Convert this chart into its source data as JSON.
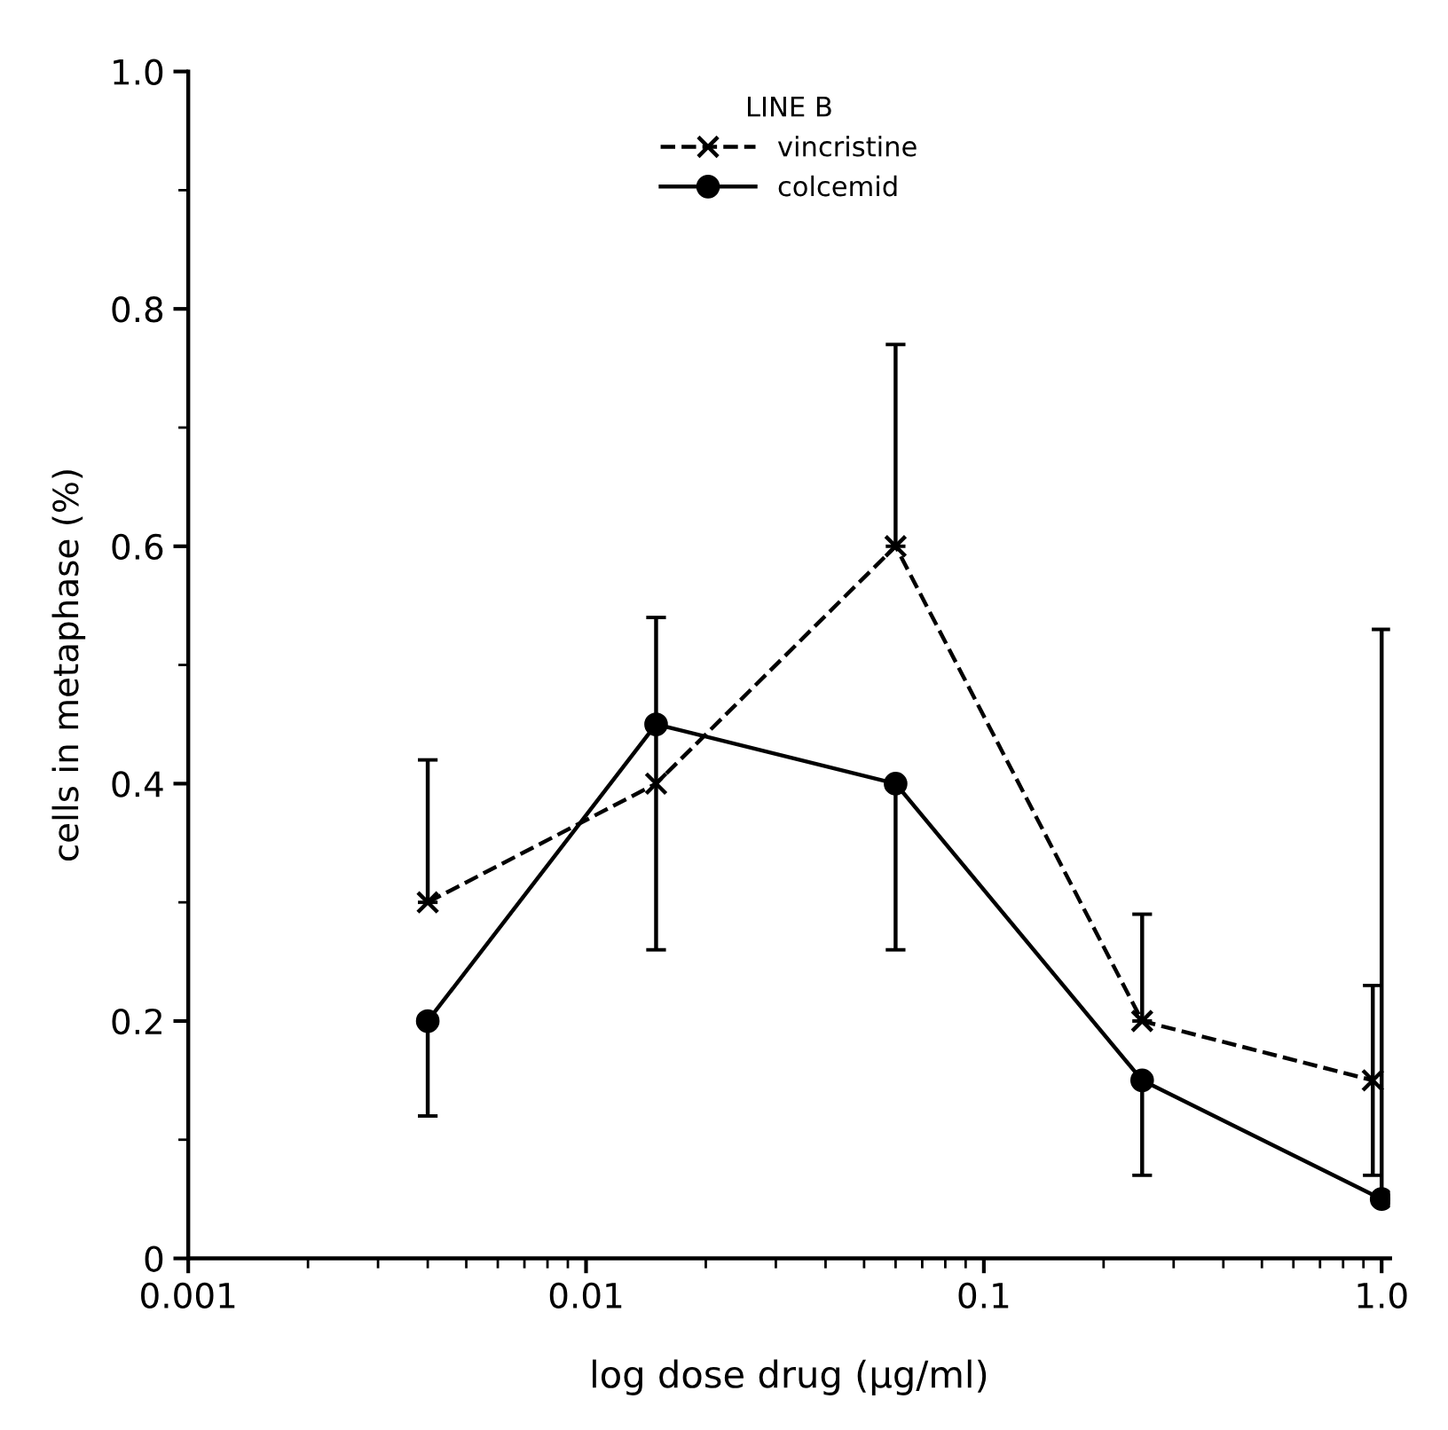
{
  "chart_data": {
    "type": "line",
    "xlabel": "log dose drug (μg/ml)",
    "ylabel": "cells in metaphase (%)",
    "legend_title": "LINE B",
    "legend": "top",
    "log": "x",
    "xlim": [
      0.001,
      1.05
    ],
    "xticks": [
      0.001,
      0.01,
      0.1,
      {
        "value": 1.0,
        "label": "1.0"
      }
    ],
    "ylim": [
      0,
      1.0
    ],
    "yticks": [
      0,
      0.2,
      0.4,
      0.6,
      0.8,
      {
        "value": 1.0,
        "label": "1.0"
      }
    ],
    "grid": false,
    "series": [
      {
        "name": "vincristine",
        "color": "#000000",
        "marker": "cross",
        "line_style": "dashed",
        "x": [
          0.004,
          0.015,
          0.06,
          0.25,
          0.95
        ],
        "values": [
          0.3,
          0.4,
          0.6,
          0.2,
          0.15
        ],
        "errors": [
          [
            0.3,
            0.42
          ],
          null,
          [
            0.6,
            0.77
          ],
          [
            0.2,
            0.29
          ],
          [
            0.07,
            0.23
          ]
        ]
      },
      {
        "name": "colcemid",
        "color": "#000000",
        "marker": "circle",
        "line_style": "solid",
        "x": [
          0.004,
          0.015,
          0.06,
          0.25,
          1.0
        ],
        "values": [
          0.2,
          0.45,
          0.4,
          0.15,
          0.05
        ],
        "errors": [
          [
            0.12,
            0.2
          ],
          [
            0.26,
            0.54
          ],
          [
            0.26,
            0.4
          ],
          [
            0.07,
            0.15
          ],
          [
            0.05,
            0.53
          ]
        ]
      }
    ]
  }
}
